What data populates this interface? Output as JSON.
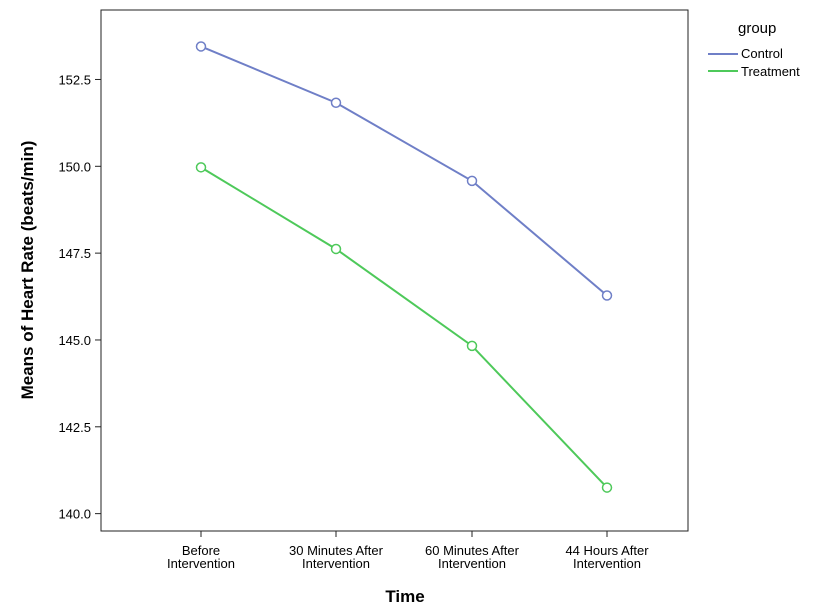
{
  "chart_data": {
    "type": "line",
    "xlabel": "Time",
    "ylabel": "Means of  Heart Rate (beats/min)",
    "categories": [
      [
        "Before",
        "Intervention"
      ],
      [
        "30 Minutes After",
        "Intervention"
      ],
      [
        "60 Minutes After",
        "Intervention"
      ],
      [
        "44 Hours After",
        "Intervention"
      ]
    ],
    "yticks": [
      "140.0",
      "142.5",
      "145.0",
      "147.5",
      "150.0",
      "152.5"
    ],
    "ylim": [
      139.5,
      154.5
    ],
    "grid": false,
    "legend": {
      "title": "group",
      "position": "top-right"
    },
    "series": [
      {
        "name": "Control",
        "color": "#6f7fc7",
        "values": [
          153.45,
          151.83,
          149.58,
          146.28
        ]
      },
      {
        "name": "Treatment",
        "color": "#4ec95a",
        "values": [
          149.97,
          147.62,
          144.83,
          140.75
        ]
      }
    ]
  }
}
